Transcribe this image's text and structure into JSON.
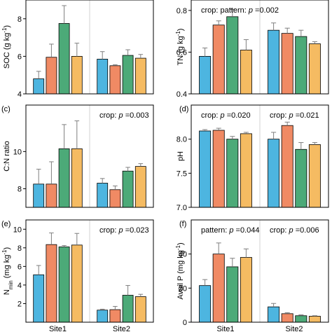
{
  "colors": [
    "#4db5e0",
    "#f08a64",
    "#4caa78",
    "#f5bb62"
  ],
  "site_labels": [
    "Site1",
    "Site2"
  ],
  "chart_data": [
    {
      "type": "bar",
      "panel_letter": "",
      "ylabel_main": "SOC (g kg",
      "ylabel_sup": "-1",
      "ylabel_end": ")",
      "ylim": [
        4,
        9
      ],
      "yticks": [
        4,
        6,
        8
      ],
      "yticklabels": [
        "4",
        "6",
        "8"
      ],
      "categories": [
        "Site1",
        "Site2"
      ],
      "values": [
        [
          4.8,
          5.95,
          7.75,
          6.0
        ],
        [
          5.85,
          5.5,
          6.05,
          5.9
        ]
      ],
      "errors": [
        [
          0.4,
          0.7,
          0.95,
          0.7
        ],
        [
          0.4,
          0.05,
          0.3,
          0.2
        ]
      ],
      "annotations": []
    },
    {
      "type": "bar",
      "panel_letter": "",
      "ylabel_main": "TN (g kg",
      "ylabel_sup": "-1",
      "ylabel_end": ")",
      "ylim": [
        0.4,
        0.85
      ],
      "yticks": [
        0.4,
        0.6,
        0.8
      ],
      "yticklabels": [
        "0.4",
        "0.6",
        "0.8"
      ],
      "categories": [
        "Site1",
        "Site2"
      ],
      "values": [
        [
          0.58,
          0.73,
          0.77,
          0.61
        ],
        [
          0.705,
          0.69,
          0.675,
          0.64
        ]
      ],
      "errors": [
        [
          0.04,
          0.02,
          0.035,
          0.05
        ],
        [
          0.035,
          0.025,
          0.03,
          0.01
        ]
      ],
      "annotations": [
        {
          "text_before": "crop: pattern: ",
          "p": "p",
          "text_after": " =0.002",
          "anchor": "left"
        }
      ]
    },
    {
      "type": "bar",
      "panel_letter": "(c)",
      "ylabel_main": "C:N ratio",
      "ylabel_sup": "",
      "ylabel_end": "",
      "ylim": [
        7,
        12.5
      ],
      "yticks": [
        8,
        10
      ],
      "yticklabels": [
        "8",
        "10"
      ],
      "categories": [
        "Site1",
        "Site2"
      ],
      "values": [
        [
          8.25,
          8.25,
          10.15,
          10.15
        ],
        [
          8.3,
          7.95,
          8.95,
          9.2
        ]
      ],
      "errors": [
        [
          0.8,
          1.2,
          1.3,
          1.5
        ],
        [
          0.25,
          0.2,
          0.2,
          0.15
        ]
      ],
      "annotations": [
        {
          "text_before": "crop: ",
          "p": "p",
          "text_after": " =0.003",
          "anchor": "right"
        }
      ]
    },
    {
      "type": "bar",
      "panel_letter": "(d)",
      "ylabel_main": "pH",
      "ylabel_sup": "",
      "ylabel_end": "",
      "ylim": [
        7.0,
        8.5
      ],
      "yticks": [
        7.0,
        7.5,
        8.0
      ],
      "yticklabels": [
        "7.0",
        "7.5",
        "8.0"
      ],
      "categories": [
        "Site1",
        "Site2"
      ],
      "values": [
        [
          8.12,
          8.13,
          8.0,
          8.08
        ],
        [
          8.0,
          8.2,
          7.85,
          7.92
        ]
      ],
      "errors": [
        [
          0.02,
          0.03,
          0.04,
          0.02
        ],
        [
          0.1,
          0.05,
          0.1,
          0.03
        ]
      ],
      "annotations": [
        {
          "text_before": "crop: ",
          "p": "p",
          "text_after": " =0.020",
          "anchor": "left"
        },
        {
          "text_before": "crop: ",
          "p": "p",
          "text_after": " =0.021",
          "anchor": "right"
        }
      ]
    },
    {
      "type": "bar",
      "panel_letter": "(e)",
      "ylabel_main": "N",
      "ylabel_sub": "min",
      "ylabel_tail": " (mg kg",
      "ylabel_sup": "-1",
      "ylabel_end": ")",
      "ylim": [
        0,
        11
      ],
      "yticks": [
        2,
        4,
        6,
        8,
        10
      ],
      "yticklabels": [
        "2",
        "4",
        "6",
        "8",
        "10"
      ],
      "categories": [
        "Site1",
        "Site2"
      ],
      "values": [
        [
          5.1,
          8.35,
          8.1,
          8.3
        ],
        [
          1.3,
          1.35,
          2.9,
          2.75
        ]
      ],
      "errors": [
        [
          1.0,
          1.25,
          0.15,
          1.25
        ],
        [
          0.1,
          0.35,
          1.05,
          0.25
        ]
      ],
      "annotations": [
        {
          "text_before": "crop: ",
          "p": "p",
          "text_after": " =0.023",
          "anchor": "right"
        }
      ]
    },
    {
      "type": "bar",
      "panel_letter": "(f)",
      "ylabel_main": "Avail P (mg kg",
      "ylabel_sup": "-1",
      "ylabel_end": ")",
      "ylim": [
        0,
        60
      ],
      "yticks": [
        0,
        20,
        40
      ],
      "yticklabels": [
        "0",
        "20",
        "40"
      ],
      "categories": [
        "Site1",
        "Site2"
      ],
      "values": [
        [
          21.5,
          40.0,
          32.5,
          38.0
        ],
        [
          9.0,
          5.0,
          3.8,
          3.5
        ]
      ],
      "errors": [
        [
          3.5,
          6.5,
          5.0,
          5.0
        ],
        [
          2.0,
          0.6,
          0.5,
          0.3
        ]
      ],
      "annotations": [
        {
          "text_before": "pattern: ",
          "p": "p",
          "text_after": " =0.044",
          "anchor": "left"
        },
        {
          "text_before": "crop: ",
          "p": "p",
          "text_after": " =0.006",
          "anchor": "right"
        }
      ]
    }
  ]
}
